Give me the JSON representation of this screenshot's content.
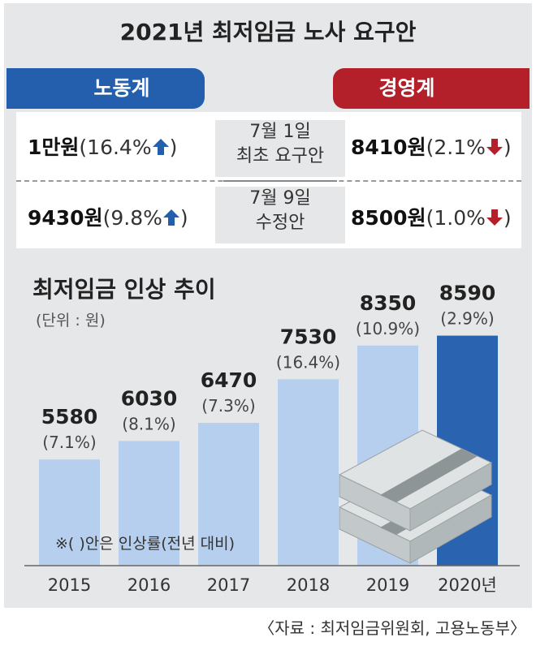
{
  "title": "2021년 최저임금 노사 요구안",
  "labor": {
    "label": "노동계",
    "initial_amount": "1만원",
    "initial_pct": "(16.4%",
    "initial_close": ")",
    "revised_amount": "9430원",
    "revised_pct": "(9.8%",
    "revised_close": ")"
  },
  "management": {
    "label": "경영계",
    "initial_amount": "8410원",
    "initial_pct": "(2.1%",
    "initial_close": ")",
    "revised_amount": "8500원",
    "revised_pct": "(1.0%",
    "revised_close": ")"
  },
  "rounds": {
    "first_date": "7월 1일",
    "first_label": "최초 요구안",
    "second_date": "7월 9일",
    "second_label": "수정안"
  },
  "colors": {
    "labor": "#245fae",
    "management": "#b3202a",
    "bar": "#b7cfee",
    "bar_highlight": "#2a63b0"
  },
  "chart_data": {
    "type": "bar",
    "title": "최저임금 인상 추이",
    "unit": "(단위 : 원)",
    "categories": [
      "2015",
      "2016",
      "2017",
      "2018",
      "2019",
      "2020년"
    ],
    "values": [
      5580,
      6030,
      6470,
      7530,
      8350,
      8590
    ],
    "value_labels": [
      "5580",
      "6030",
      "6470",
      "7530",
      "8350",
      "8590"
    ],
    "pct_labels": [
      "(7.1%)",
      "(8.1%)",
      "(7.3%)",
      "(16.4%)",
      "(10.9%)",
      "(2.9%)"
    ],
    "highlight_index": 5,
    "note": "※(   )안은 인상률(전년 대비)"
  },
  "source": "〈자료 : 최저임금위원회, 고용노동부〉"
}
